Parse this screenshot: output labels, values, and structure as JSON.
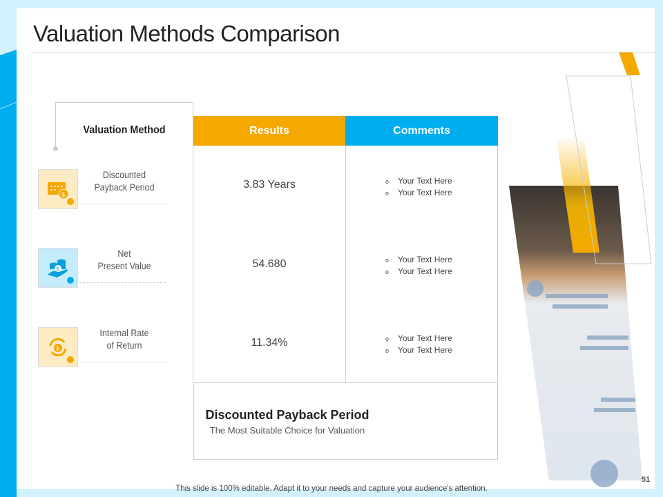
{
  "title": "Valuation Methods Comparison",
  "colors": {
    "accent_orange": "#f5a800",
    "accent_blue": "#00aeef",
    "frame": "#d3f1fc"
  },
  "valuation_method_header": "Valuation Method",
  "methods": [
    {
      "label_line1": "Discounted",
      "label_line2": "Payback Period",
      "icon": "calendar-dollar-icon",
      "dot_color": "#f5a800"
    },
    {
      "label_line1": "Net",
      "label_line2": "Present Value",
      "icon": "hand-coins-icon",
      "dot_color": "#00aeef"
    },
    {
      "label_line1": "Internal Rate",
      "label_line2": "of Return",
      "icon": "money-bag-cycle-icon",
      "dot_color": "#f5a800"
    }
  ],
  "table": {
    "headers": {
      "results": "Results",
      "comments": "Comments"
    },
    "rows": [
      {
        "result": "3.83 Years",
        "comments": [
          "Your Text Here",
          "Your Text Here"
        ]
      },
      {
        "result": "54.680",
        "comments": [
          "Your Text Here",
          "Your Text Here"
        ]
      },
      {
        "result": "11.34%",
        "comments": [
          "Your Text Here",
          "Your Text Here"
        ]
      }
    ],
    "bullet": "o"
  },
  "conclusion": {
    "title": "Discounted Payback Period",
    "subtitle": "The Most Suitable Choice for Valuation"
  },
  "footer": "This slide is 100% editable. Adapt it to your needs and capture your audience's attention.",
  "page_number": "51"
}
